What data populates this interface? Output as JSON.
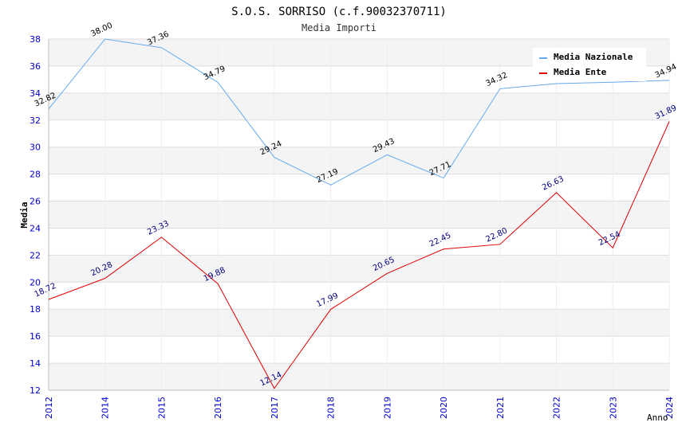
{
  "chart_data": {
    "type": "line",
    "title": "S.O.S. SORRISO (c.f.90032370711)",
    "subtitle": "Media Importi",
    "xlabel": "Anno",
    "ylabel": "Media",
    "categories": [
      "2012",
      "2014",
      "2015",
      "2016",
      "2017",
      "2018",
      "2019",
      "2020",
      "2021",
      "2022",
      "2023",
      "2024"
    ],
    "ylim": [
      12,
      38
    ],
    "yticks": [
      12,
      14,
      16,
      18,
      20,
      22,
      24,
      26,
      28,
      30,
      32,
      34,
      36,
      38
    ],
    "grid": true,
    "legend_position": "top-right",
    "series": [
      {
        "name": "Media Nazionale",
        "color": "#66aaee",
        "values": [
          32.82,
          38.0,
          37.36,
          34.79,
          29.24,
          27.19,
          29.43,
          27.71,
          34.32,
          34.7,
          34.8,
          34.94
        ],
        "labels": [
          "32.82",
          "38.00",
          "37.36",
          "34.79",
          "29.24",
          "27.19",
          "29.43",
          "27.71",
          "34.32",
          "",
          "",
          "34.94"
        ]
      },
      {
        "name": "Media Ente",
        "color": "#dd0000",
        "values": [
          18.72,
          20.28,
          23.33,
          19.88,
          12.14,
          17.99,
          20.65,
          22.45,
          22.8,
          26.63,
          22.54,
          31.89
        ],
        "labels": [
          "18.72",
          "20.28",
          "23.33",
          "19.88",
          "12.14",
          "17.99",
          "20.65",
          "22.45",
          "22.80",
          "26.63",
          "22.54",
          "31.89"
        ]
      }
    ]
  }
}
